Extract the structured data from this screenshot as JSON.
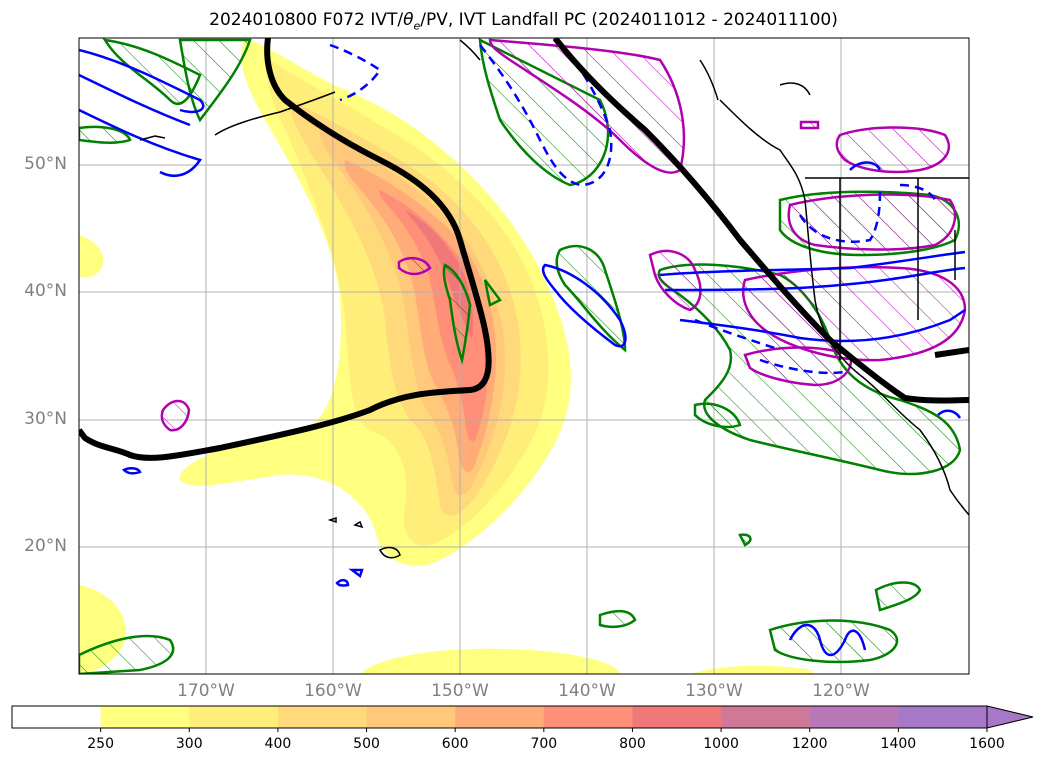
{
  "title": {
    "prefix": "2024010800 F072 IVT/",
    "theta": "θ",
    "theta_sub": "e",
    "suffix": "/PV, IVT Landfall PC (2024011012 - 2024011100)"
  },
  "map": {
    "projection": "PlateCarree",
    "lon_range": [
      -180,
      -110
    ],
    "lat_range": [
      10,
      60
    ],
    "lat_labels": [
      "20°N",
      "30°N",
      "40°N",
      "50°N"
    ],
    "lon_labels": [
      "170°W",
      "160°W",
      "150°W",
      "140°W",
      "130°W",
      "120°W"
    ]
  },
  "colorbar": {
    "ticks": [
      "250",
      "300",
      "400",
      "500",
      "600",
      "700",
      "800",
      "1000",
      "1200",
      "1400",
      "1600"
    ],
    "colors": [
      "#ffffff",
      "#ffff80",
      "#ffee7a",
      "#ffd97a",
      "#ffc87a",
      "#ffac78",
      "#ff8f78",
      "#f07878",
      "#d07898",
      "#b878b8",
      "#a878c8"
    ],
    "extend": "max"
  },
  "colors": {
    "ivt_high": "#f08070",
    "ivt_low": "#ffff80",
    "contour_thick": "#000000",
    "green_contour": "#008000",
    "blue_contour": "#0000ff",
    "magenta_contour": "#b000b0",
    "grid": "#b0b0b0",
    "coast": "#000000"
  }
}
